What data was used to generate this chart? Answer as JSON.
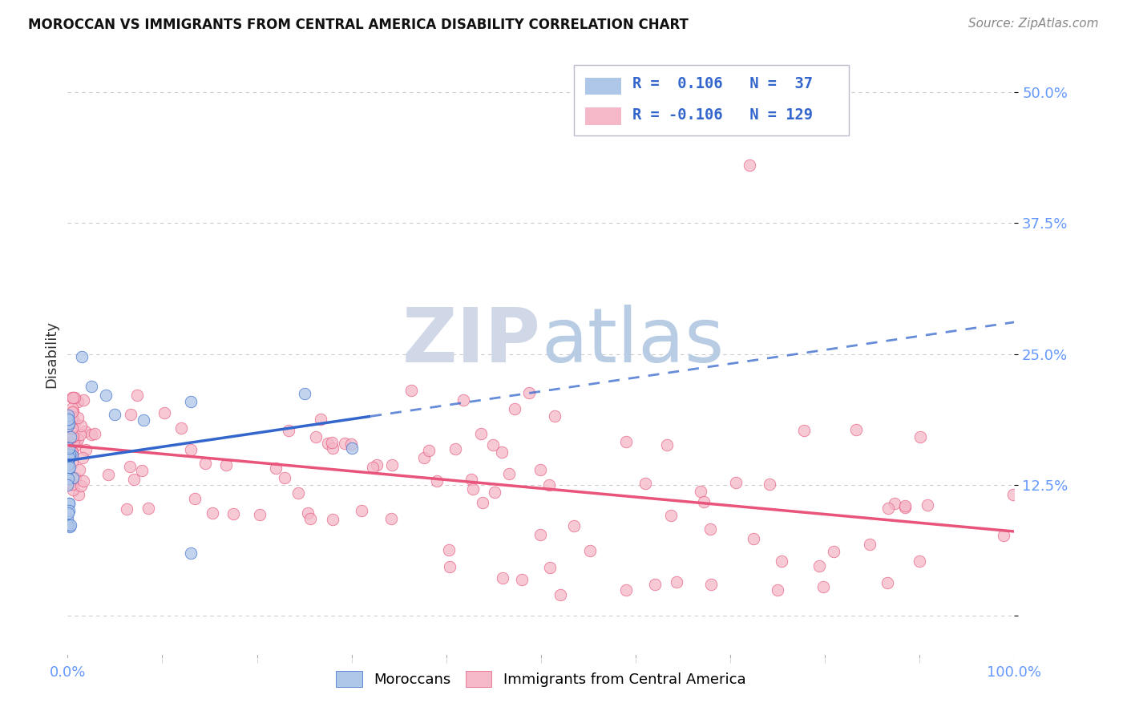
{
  "title": "MOROCCAN VS IMMIGRANTS FROM CENTRAL AMERICA DISABILITY CORRELATION CHART",
  "source": "Source: ZipAtlas.com",
  "ylabel": "Disability",
  "background_color": "#ffffff",
  "grid_color": "#cccccc",
  "moroccan_color": "#aec6e8",
  "central_america_color": "#f4b8c8",
  "trend_moroccan_color": "#3366cc",
  "trend_central_color": "#e8547a",
  "tick_color": "#6699ff",
  "watermark_color": "#d0d8e8",
  "xlim": [
    0.0,
    1.0
  ],
  "ylim": [
    -0.04,
    0.54
  ],
  "yticks": [
    0.0,
    0.125,
    0.25,
    0.375,
    0.5
  ],
  "ytick_labels": [
    "",
    "12.5%",
    "25.0%",
    "37.5%",
    "50.0%"
  ],
  "xtick_labels": [
    "0.0%",
    "100.0%"
  ],
  "legend_line1": "R =  0.106   N =  37",
  "legend_line2": "R = -0.106   N = 129",
  "moroccan_R": 0.106,
  "central_R": -0.106,
  "moroccan_N": 37,
  "central_N": 129
}
